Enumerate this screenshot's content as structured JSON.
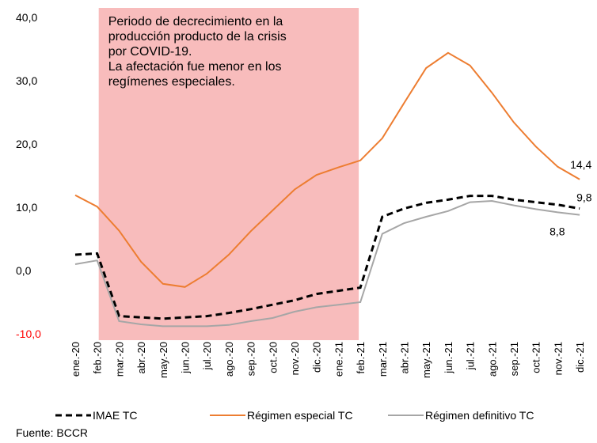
{
  "chart_data": {
    "type": "line",
    "categories": [
      "ene.-20",
      "feb.-20",
      "mar.-20",
      "abr.-20",
      "may.-20",
      "jun.-20",
      "jul.-20",
      "ago.-20",
      "sep.-20",
      "oct.-20",
      "nov.-20",
      "dic.-20",
      "ene.-21",
      "feb.-21",
      "mar.-21",
      "abr.-21",
      "may.-21",
      "jun.-21",
      "jul.-21",
      "ago.-21",
      "sep.-21",
      "oct.-21",
      "nov.-21",
      "dic.-21"
    ],
    "series": [
      {
        "name": "IMAE TC",
        "color": "#000000",
        "dashed": true,
        "values": [
          2.5,
          2.7,
          -7.2,
          -7.4,
          -7.6,
          -7.4,
          -7.2,
          -6.7,
          -6.1,
          -5.4,
          -4.7,
          -3.7,
          -3.2,
          -2.7,
          8.5,
          9.8,
          10.7,
          11.2,
          11.8,
          11.8,
          11.2,
          10.8,
          10.4,
          9.8
        ],
        "value_labels": [
          null,
          null,
          null,
          null,
          null,
          null,
          null,
          null,
          null,
          null,
          null,
          null,
          null,
          null,
          null,
          null,
          null,
          null,
          null,
          null,
          null,
          null,
          null,
          "9,8"
        ]
      },
      {
        "name": "Régimen especial TC",
        "color": "#ed7d31",
        "dashed": false,
        "values": [
          11.9,
          10.1,
          6.3,
          1.4,
          -2.1,
          -2.6,
          -0.5,
          2.5,
          6.2,
          9.5,
          12.8,
          15.1,
          16.3,
          17.4,
          20.9,
          26.5,
          32.0,
          34.4,
          32.4,
          28.1,
          23.4,
          19.6,
          16.4,
          14.4
        ],
        "value_labels": [
          null,
          null,
          null,
          null,
          null,
          null,
          null,
          null,
          null,
          null,
          null,
          null,
          null,
          null,
          null,
          null,
          null,
          null,
          null,
          null,
          null,
          null,
          null,
          "14,4"
        ]
      },
      {
        "name": "Régimen definitivo TC",
        "color": "#a6a6a6",
        "dashed": false,
        "values": [
          1.0,
          1.6,
          -8.0,
          -8.5,
          -8.8,
          -8.8,
          -8.8,
          -8.6,
          -8.0,
          -7.5,
          -6.5,
          -5.8,
          -5.4,
          -5.0,
          5.8,
          7.5,
          8.5,
          9.4,
          10.8,
          11.0,
          10.3,
          9.7,
          9.2,
          8.8
        ],
        "value_labels": [
          null,
          null,
          null,
          null,
          null,
          null,
          null,
          null,
          null,
          null,
          null,
          null,
          null,
          null,
          null,
          null,
          null,
          null,
          null,
          null,
          null,
          null,
          null,
          "8,8"
        ]
      }
    ],
    "ylim": [
      -10,
      40
    ],
    "yticks": [
      {
        "value": -10,
        "label": "-10,0",
        "color": "#ff0000"
      },
      {
        "value": 0,
        "label": "0,0"
      },
      {
        "value": 10,
        "label": "10,0"
      },
      {
        "value": 20,
        "label": "20,0"
      },
      {
        "value": 30,
        "label": "30,0"
      },
      {
        "value": 40,
        "label": "40,0"
      }
    ],
    "highlight": {
      "from": "feb.-20",
      "to": "feb.-21",
      "color": "#f8bcbc",
      "text": [
        "Periodo de decrecimiento en la",
        "producción producto de la crisis",
        "por COVID-19.",
        "La afectación fue menor en los",
        "regímenes especiales."
      ]
    },
    "source": "Fuente: BCCR"
  }
}
